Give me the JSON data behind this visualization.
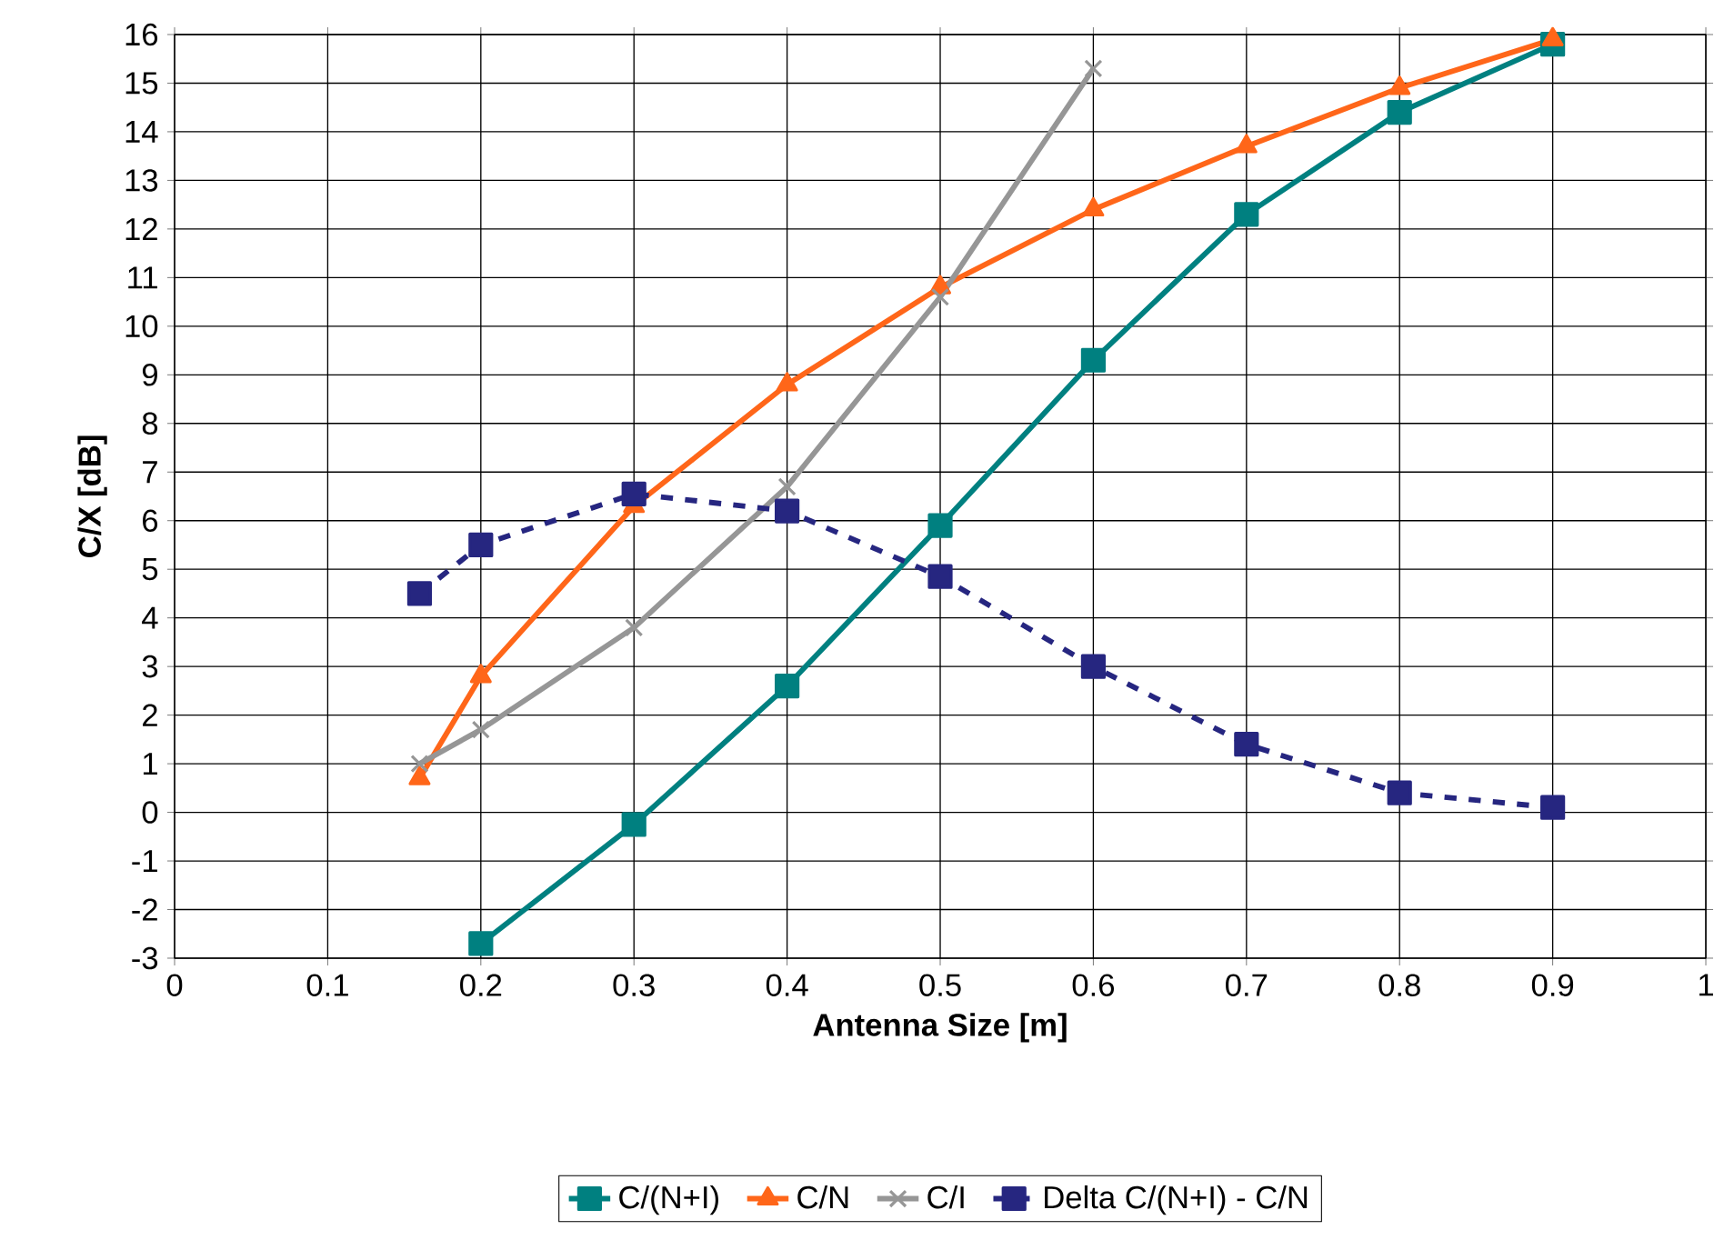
{
  "chart_data": {
    "type": "line",
    "xlabel": "Antenna Size [m]",
    "ylabel": "C/X [dB]",
    "xlim": [
      0,
      1
    ],
    "ylim": [
      -3,
      16
    ],
    "xticks": [
      0,
      0.1,
      0.2,
      0.3,
      0.4,
      0.5,
      0.6,
      0.7,
      0.8,
      0.9,
      1
    ],
    "yticks": [
      -3,
      -2,
      -1,
      0,
      1,
      2,
      3,
      4,
      5,
      6,
      7,
      8,
      9,
      10,
      11,
      12,
      13,
      14,
      15,
      16
    ],
    "grid": true,
    "legend": "bottom",
    "series": [
      {
        "name": "C/(N+I)",
        "color": "#008080",
        "marker": "square",
        "line_style": "solid",
        "x": [
          0.2,
          0.3,
          0.4,
          0.5,
          0.6,
          0.7,
          0.8,
          0.9
        ],
        "values": [
          -2.7,
          -0.25,
          2.6,
          5.9,
          9.3,
          12.3,
          14.4,
          15.8
        ]
      },
      {
        "name": "C/N",
        "color": "#ff6619",
        "marker": "triangle",
        "line_style": "solid",
        "x": [
          0.16,
          0.2,
          0.3,
          0.4,
          0.5,
          0.6,
          0.7,
          0.8,
          0.9
        ],
        "values": [
          0.7,
          2.8,
          6.3,
          8.8,
          10.8,
          12.4,
          13.7,
          14.9,
          15.9
        ]
      },
      {
        "name": "C/I",
        "color": "#969696",
        "marker": "cross",
        "line_style": "solid",
        "x": [
          0.16,
          0.2,
          0.3,
          0.4,
          0.5,
          0.6
        ],
        "values": [
          1.0,
          1.7,
          3.8,
          6.7,
          10.6,
          15.3
        ]
      },
      {
        "name": "Delta C/(N+I) - C/N",
        "color": "#262680",
        "marker": "square",
        "line_style": "dashed",
        "x": [
          0.16,
          0.2,
          0.3,
          0.4,
          0.5,
          0.6,
          0.7,
          0.8,
          0.9
        ],
        "values": [
          4.5,
          5.5,
          6.55,
          6.2,
          4.85,
          3.0,
          1.4,
          0.4,
          0.1
        ]
      }
    ]
  }
}
